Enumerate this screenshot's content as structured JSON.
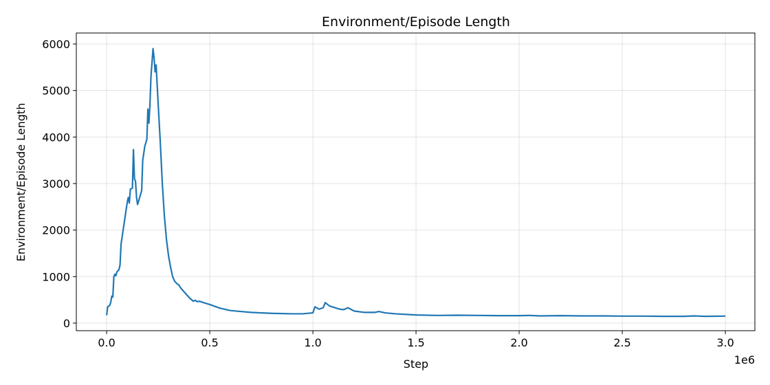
{
  "chart_data": {
    "type": "line",
    "title": "Environment/Episode Length",
    "x_label": "Step",
    "y_label": "Environment/Episode Length",
    "x_offset_label": "1e6",
    "grid": true,
    "color": "#1f77b4",
    "x": [
      0.0,
      0.005,
      0.015,
      0.02,
      0.025,
      0.03,
      0.035,
      0.04,
      0.045,
      0.05,
      0.06,
      0.065,
      0.07,
      0.08,
      0.09,
      0.1,
      0.105,
      0.11,
      0.115,
      0.125,
      0.13,
      0.135,
      0.14,
      0.145,
      0.15,
      0.16,
      0.17,
      0.175,
      0.185,
      0.195,
      0.2,
      0.205,
      0.21,
      0.215,
      0.225,
      0.23,
      0.235,
      0.24,
      0.25,
      0.26,
      0.27,
      0.28,
      0.29,
      0.3,
      0.31,
      0.32,
      0.33,
      0.34,
      0.35,
      0.36,
      0.38,
      0.4,
      0.42,
      0.43,
      0.44,
      0.45,
      0.47,
      0.5,
      0.55,
      0.6,
      0.65,
      0.7,
      0.8,
      0.9,
      0.95,
      1.0,
      1.01,
      1.03,
      1.05,
      1.06,
      1.08,
      1.1,
      1.13,
      1.15,
      1.17,
      1.2,
      1.25,
      1.3,
      1.32,
      1.35,
      1.4,
      1.5,
      1.6,
      1.7,
      1.8,
      1.9,
      2.0,
      2.05,
      2.1,
      2.2,
      2.3,
      2.4,
      2.5,
      2.6,
      2.7,
      2.8,
      2.85,
      2.9,
      3.0
    ],
    "values": [
      170,
      350,
      380,
      450,
      580,
      560,
      1000,
      1050,
      1020,
      1100,
      1150,
      1250,
      1700,
      2000,
      2300,
      2600,
      2700,
      2580,
      2880,
      2900,
      3730,
      3100,
      3050,
      2700,
      2550,
      2700,
      2850,
      3500,
      3800,
      3950,
      4600,
      4300,
      4700,
      5300,
      5900,
      5700,
      5400,
      5550,
      4700,
      3900,
      3000,
      2300,
      1800,
      1450,
      1200,
      1000,
      900,
      850,
      820,
      750,
      650,
      550,
      470,
      490,
      460,
      470,
      440,
      400,
      320,
      270,
      250,
      230,
      210,
      200,
      200,
      220,
      350,
      300,
      330,
      440,
      370,
      340,
      300,
      290,
      330,
      260,
      230,
      230,
      250,
      220,
      200,
      175,
      165,
      170,
      165,
      160,
      160,
      165,
      155,
      160,
      155,
      155,
      150,
      150,
      145,
      145,
      155,
      145,
      150
    ],
    "xlim": [
      -0.147,
      3.143
    ],
    "ylim": [
      -163,
      6236
    ],
    "xticks": [
      {
        "value": 0,
        "label": "0.0"
      },
      0.5,
      {
        "value": 1,
        "label": "1.0"
      },
      1.5,
      {
        "value": 2,
        "label": "2.0"
      },
      2.5,
      {
        "value": 3,
        "label": "3.0"
      }
    ],
    "yticks": [
      0,
      1000,
      2000,
      3000,
      4000,
      5000,
      6000
    ]
  }
}
